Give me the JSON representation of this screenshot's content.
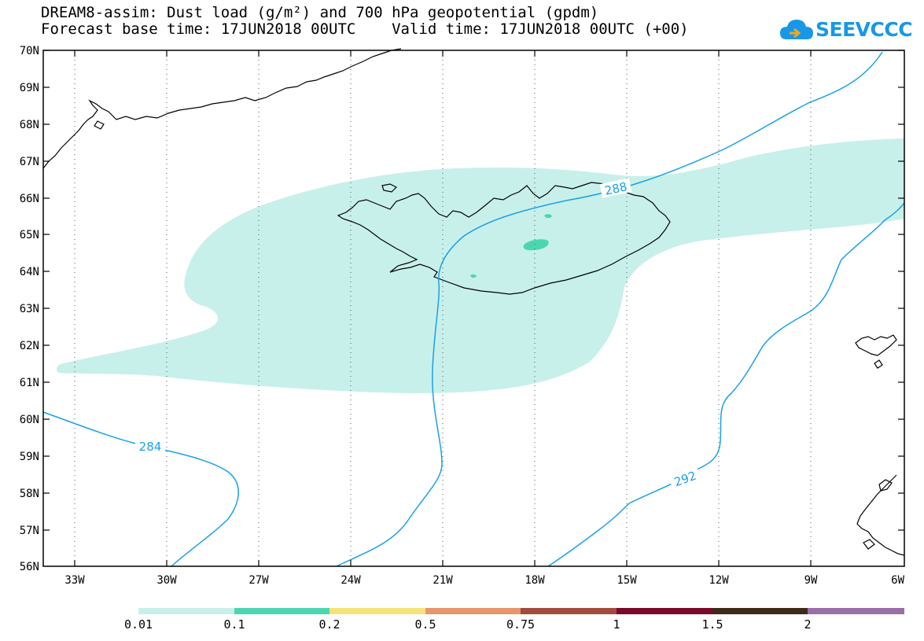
{
  "header": {
    "title_line1": "DREAM8-assim: Dust load (g/m²) and 700 hPa geopotential (gpdm)",
    "title_line2": "Forecast base time: 17JUN2018 00UTC    Valid time: 17JUN2018 00UTC (+00)"
  },
  "logo": {
    "text": "SEEVCCC",
    "icon": "cloud-icon",
    "color": "#1798e6"
  },
  "map": {
    "lon_range": [
      -34.0,
      -6.0
    ],
    "lat_range": [
      56.0,
      70.0
    ],
    "lat_labels": [
      "70N",
      "69N",
      "68N",
      "67N",
      "66N",
      "65N",
      "64N",
      "63N",
      "62N",
      "61N",
      "60N",
      "59N",
      "58N",
      "57N",
      "56N"
    ],
    "lon_labels": [
      "33W",
      "30W",
      "27W",
      "24W",
      "21W",
      "18W",
      "15W",
      "12W",
      "9W",
      "6W"
    ],
    "grid": "dotted",
    "contour_labels": [
      "284",
      "288",
      "292"
    ],
    "contour_color": "#1aa0e8",
    "dust_color_light": "#c8f0ea",
    "dust_color_mid": "#4cd6b0"
  },
  "colorbar": {
    "colors": [
      "#c8f0ea",
      "#4cd6b0",
      "#f5e37a",
      "#e8956a",
      "#a34a3e",
      "#7a0a2a",
      "#3e2a18",
      "#9a6ea8"
    ],
    "labels": [
      "0.01",
      "0.1",
      "0.2",
      "0.5",
      "0.75",
      "1",
      "1.5",
      "2"
    ]
  }
}
